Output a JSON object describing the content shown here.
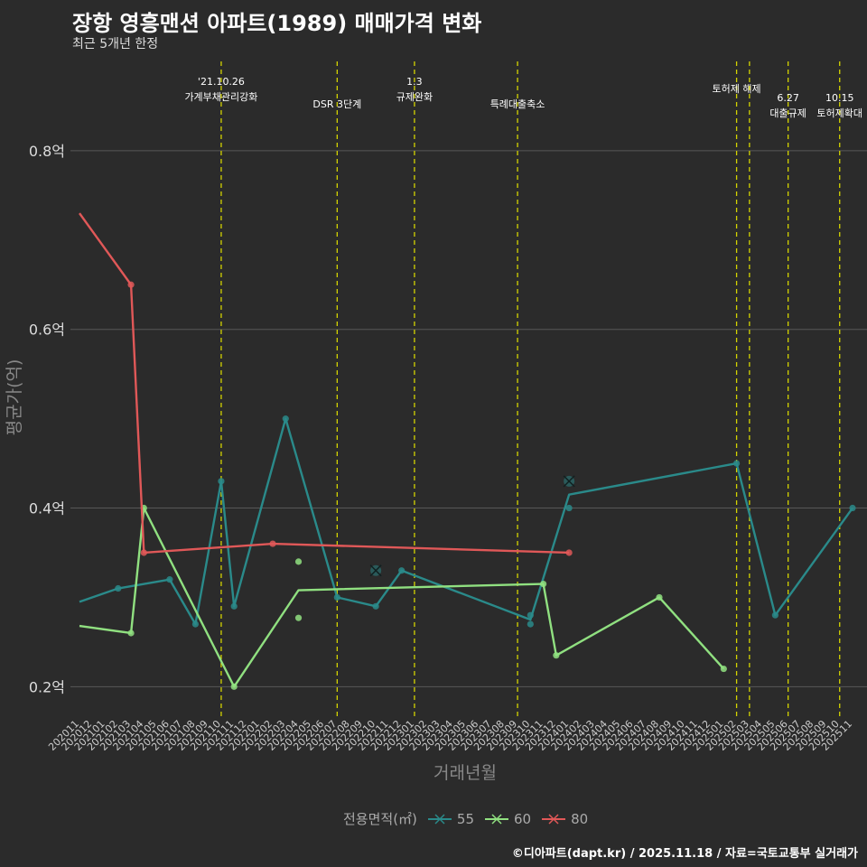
{
  "title": "장항 영흥맨션 아파트(1989) 매매가격 변화",
  "subtitle": "최근 5개년 한정",
  "caption": "©디아파트(dapt.kr) / 2025.11.18 / 자료=국토교통부 실거래가",
  "colors": {
    "background": "#2b2b2b",
    "grid": "#555555",
    "event": "#d4d400",
    "s55": "#2a8a8a",
    "s60": "#90e080",
    "s80": "#e05858"
  },
  "chart_data": {
    "type": "line",
    "title": "장항 영흥맨션 아파트(1989) 매매가격 변화",
    "xlabel": "거래년월",
    "ylabel": "평균가(억)",
    "ylim": [
      0.17,
      0.9
    ],
    "yticks": [
      0.2,
      0.4,
      0.6,
      0.8
    ],
    "ytick_labels": [
      "0.2억",
      "0.4억",
      "0.6억",
      "0.8억"
    ],
    "categories": [
      "202011",
      "202012",
      "202101",
      "202102",
      "202103",
      "202104",
      "202105",
      "202106",
      "202107",
      "202108",
      "202109",
      "202110",
      "202111",
      "202112",
      "202201",
      "202202",
      "202203",
      "202204",
      "202205",
      "202206",
      "202207",
      "202208",
      "202209",
      "202210",
      "202211",
      "202212",
      "202301",
      "202302",
      "202303",
      "202304",
      "202305",
      "202306",
      "202307",
      "202308",
      "202309",
      "202310",
      "202311",
      "202312",
      "202401",
      "202402",
      "202403",
      "202404",
      "202405",
      "202406",
      "202407",
      "202408",
      "202409",
      "202410",
      "202411",
      "202412",
      "202501",
      "202502",
      "202503",
      "202504",
      "202505",
      "202506",
      "202507",
      "202508",
      "202509",
      "202510",
      "202511"
    ],
    "legend_title": "전용면적(㎡)",
    "series": [
      {
        "name": "55",
        "color": "#2a8a8a",
        "line": [
          [
            0,
            0.295
          ],
          [
            3,
            0.31
          ],
          [
            7,
            0.32
          ],
          [
            9,
            0.27
          ],
          [
            11,
            0.43
          ],
          [
            12,
            0.29
          ],
          [
            16,
            0.5
          ],
          [
            20,
            0.3
          ],
          [
            23,
            0.29
          ],
          [
            25,
            0.33
          ],
          [
            35,
            0.275
          ],
          [
            38,
            0.415
          ],
          [
            51,
            0.45
          ],
          [
            54,
            0.28
          ],
          [
            60,
            0.4
          ]
        ],
        "points": [
          [
            3,
            0.31
          ],
          [
            7,
            0.32
          ],
          [
            9,
            0.27
          ],
          [
            11,
            0.43
          ],
          [
            12,
            0.29
          ],
          [
            16,
            0.5
          ],
          [
            20,
            0.3
          ],
          [
            23,
            0.29
          ],
          [
            25,
            0.33
          ],
          [
            35,
            0.27
          ],
          [
            35,
            0.28
          ],
          [
            38,
            0.4
          ],
          [
            51,
            0.45
          ],
          [
            54,
            0.28
          ],
          [
            60,
            0.4
          ]
        ],
        "crosses": [
          [
            23,
            0.33
          ],
          [
            38,
            0.43
          ]
        ]
      },
      {
        "name": "60",
        "color": "#90e080",
        "line": [
          [
            0,
            0.268
          ],
          [
            4,
            0.26
          ],
          [
            5,
            0.4
          ],
          [
            12,
            0.2
          ],
          [
            17,
            0.308
          ],
          [
            36,
            0.315
          ],
          [
            37,
            0.235
          ],
          [
            45,
            0.3
          ],
          [
            50,
            0.22
          ]
        ],
        "points": [
          [
            4,
            0.26
          ],
          [
            5,
            0.4
          ],
          [
            12,
            0.2
          ],
          [
            17,
            0.34
          ],
          [
            17,
            0.277
          ],
          [
            36,
            0.315
          ],
          [
            37,
            0.235
          ],
          [
            45,
            0.3
          ],
          [
            50,
            0.22
          ]
        ],
        "crosses": []
      },
      {
        "name": "80",
        "color": "#e05858",
        "line": [
          [
            0,
            0.73
          ],
          [
            4,
            0.65
          ],
          [
            5,
            0.35
          ],
          [
            15,
            0.36
          ],
          [
            38,
            0.35
          ]
        ],
        "points": [
          [
            4,
            0.65
          ],
          [
            5,
            0.35
          ],
          [
            15,
            0.36
          ],
          [
            38,
            0.35
          ]
        ],
        "crosses": []
      }
    ],
    "events": [
      {
        "x": 11,
        "lines": [
          "'21.10.26",
          "가계부채관리강화"
        ]
      },
      {
        "x": 20,
        "lines": [
          "DSR 3단계"
        ]
      },
      {
        "x": 26,
        "lines": [
          "1.3",
          "규제완화"
        ]
      },
      {
        "x": 34,
        "lines": [
          "특례대출축소"
        ]
      },
      {
        "x": 51,
        "lines": [
          "토허제 해제"
        ]
      },
      {
        "x": 52,
        "lines": []
      },
      {
        "x": 55,
        "lines": [
          "6.27",
          "대출규제"
        ]
      },
      {
        "x": 59,
        "lines": [
          "10.15",
          "토허제확대"
        ]
      }
    ]
  }
}
